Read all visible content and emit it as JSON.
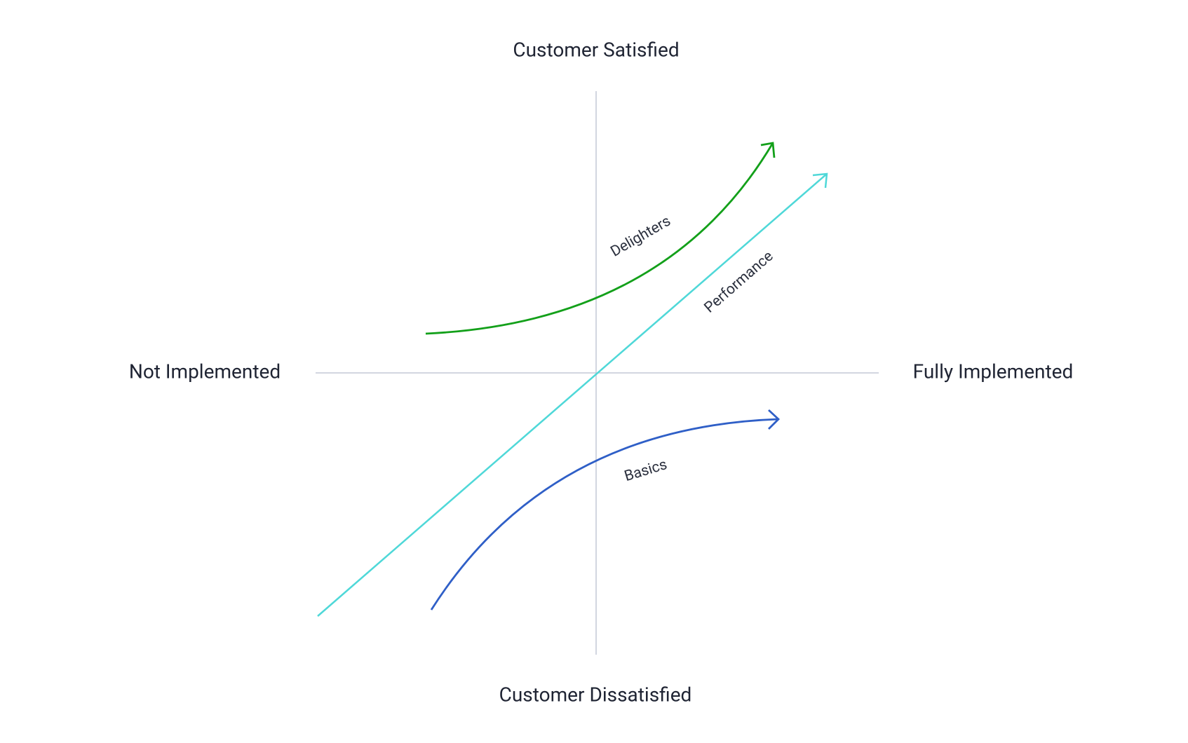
{
  "axes": {
    "top": "Customer Satisfied",
    "bottom": "Customer Dissatisfied",
    "left": "Not Implemented",
    "right": "Fully Implemented"
  },
  "curves": [
    {
      "label": "Delighters"
    },
    {
      "label": "Performance"
    },
    {
      "label": "Basics"
    }
  ]
}
